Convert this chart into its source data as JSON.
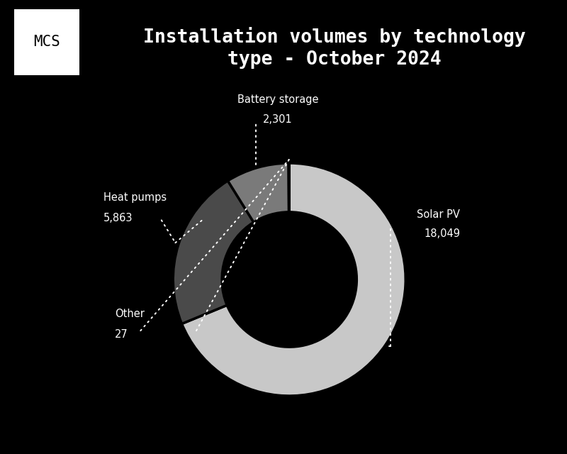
{
  "title_line1": "Installation volumes by technology",
  "title_line2": "type - October 2024",
  "background_color": "#000000",
  "text_color": "#ffffff",
  "segments": [
    {
      "label": "Solar PV",
      "value": 18049,
      "color": "#c8c8c8"
    },
    {
      "label": "Heat pumps",
      "value": 5863,
      "color": "#4a4a4a"
    },
    {
      "label": "Battery storage",
      "value": 2301,
      "color": "#7a7a7a"
    },
    {
      "label": "Other",
      "value": 27,
      "color": "#2e2e2e"
    }
  ],
  "label_fontsize": 10.5,
  "value_fontsize": 10.5,
  "title_fontsize": 19,
  "donut_width": 0.42
}
